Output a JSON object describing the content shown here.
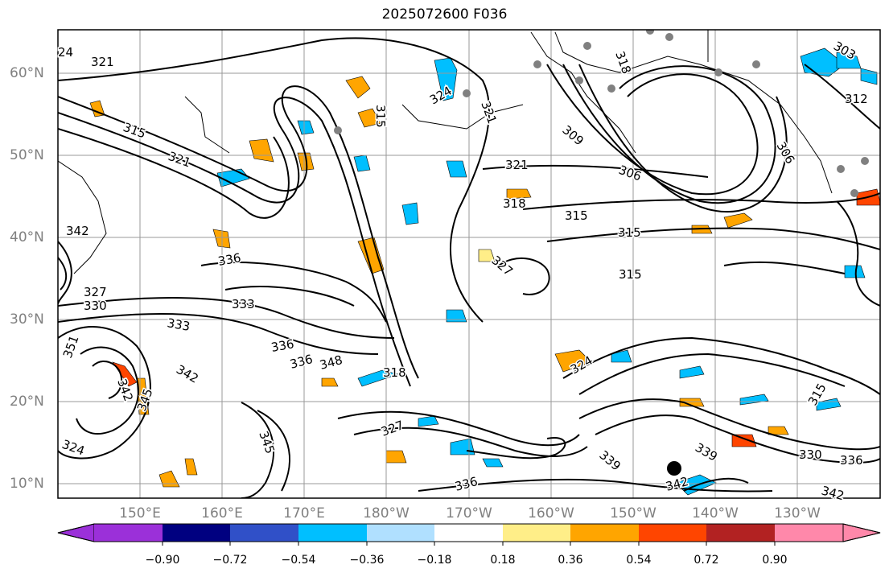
{
  "title": "2025072600 F036",
  "latitude_labels": [
    "60°N",
    "50°N",
    "40°N",
    "30°N",
    "20°N",
    "10°N"
  ],
  "longitude_labels": [
    "150°E",
    "160°E",
    "170°E",
    "180°W",
    "170°W",
    "160°W",
    "150°W",
    "140°W",
    "130°W"
  ],
  "colorbar": {
    "tick_labels": [
      "−0.90",
      "−0.72",
      "−0.54",
      "−0.36",
      "−0.18",
      "0.18",
      "0.36",
      "0.54",
      "0.72",
      "0.90"
    ],
    "colors": [
      "#9b30d9",
      "#000080",
      "#3050c8",
      "#00bfff",
      "#b0e0ff",
      "#ffffff",
      "#ffee88",
      "#ffa500",
      "#ff4500",
      "#b22222",
      "#ff88aa"
    ]
  },
  "contour_labels": [
    "321",
    "315",
    "321",
    "336",
    "342",
    "333",
    "330",
    "327",
    "333",
    "336",
    "336",
    "348",
    "351",
    "342",
    "342",
    "345",
    "324",
    "327",
    "318",
    "315",
    "324",
    "321",
    "321",
    "318",
    "315",
    "327",
    "315",
    "309",
    "306",
    "303",
    "312",
    "306",
    "318",
    "315",
    "345",
    "339",
    "336",
    "342",
    "339",
    "330",
    "336",
    "342",
    "315",
    "324",
    "24"
  ]
}
